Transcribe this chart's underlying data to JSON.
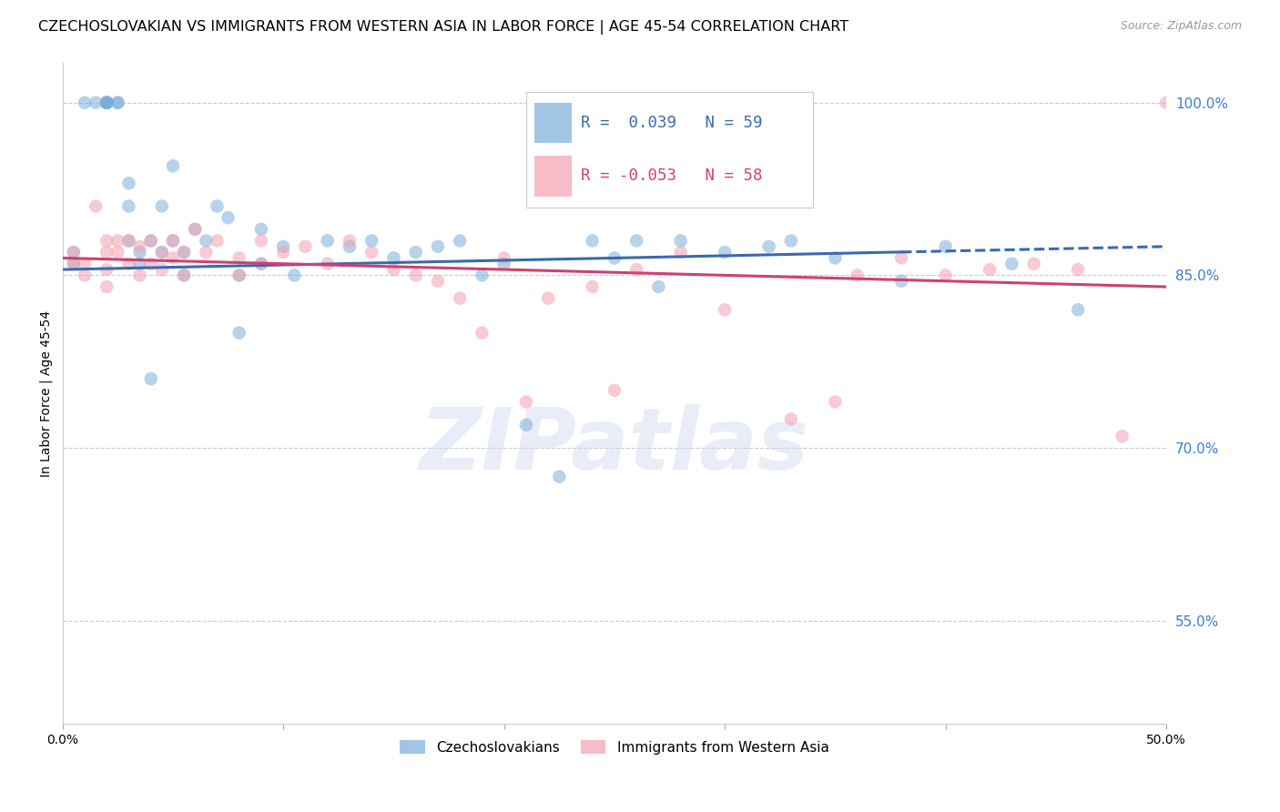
{
  "title": "CZECHOSLOVAKIAN VS IMMIGRANTS FROM WESTERN ASIA IN LABOR FORCE | AGE 45-54 CORRELATION CHART",
  "source": "Source: ZipAtlas.com",
  "ylabel": "In Labor Force | Age 45-54",
  "xlim_pct": [
    0.0,
    50.0
  ],
  "ylim_pct": [
    46.0,
    103.5
  ],
  "ytick_labels_right": [
    "100.0%",
    "85.0%",
    "70.0%",
    "55.0%"
  ],
  "ytick_positions_right": [
    100.0,
    85.0,
    70.0,
    55.0
  ],
  "xtick_positions": [
    0.0,
    10.0,
    20.0,
    30.0,
    40.0,
    50.0
  ],
  "xtick_labels": [
    "0.0%",
    "",
    "",
    "",
    "",
    "50.0%"
  ],
  "blue_R": 0.039,
  "blue_N": 59,
  "pink_R": -0.053,
  "pink_N": 58,
  "blue_color": "#7aafdb",
  "pink_color": "#f4a0b0",
  "blue_line_color": "#3a6ab0",
  "pink_line_color": "#d04070",
  "watermark_text": "ZIPatlas",
  "blue_scatter_x": [
    0.5,
    0.5,
    1.0,
    1.5,
    2.0,
    2.0,
    2.0,
    2.0,
    2.0,
    2.0,
    2.5,
    2.5,
    3.0,
    3.0,
    3.0,
    3.5,
    3.5,
    4.0,
    4.0,
    4.5,
    4.5,
    5.0,
    5.0,
    5.5,
    5.5,
    6.0,
    6.5,
    7.0,
    7.5,
    8.0,
    8.0,
    9.0,
    9.0,
    10.0,
    10.5,
    12.0,
    13.0,
    14.0,
    15.0,
    16.0,
    17.0,
    18.0,
    19.0,
    20.0,
    21.0,
    22.5,
    24.0,
    25.0,
    26.0,
    27.0,
    28.0,
    30.0,
    32.0,
    33.0,
    35.0,
    38.0,
    40.0,
    43.0,
    46.0
  ],
  "blue_scatter_y": [
    87.0,
    86.0,
    100.0,
    100.0,
    100.0,
    100.0,
    100.0,
    100.0,
    100.0,
    100.0,
    100.0,
    100.0,
    91.0,
    93.0,
    88.0,
    87.0,
    86.0,
    88.0,
    76.0,
    91.0,
    87.0,
    94.5,
    88.0,
    87.0,
    85.0,
    89.0,
    88.0,
    91.0,
    90.0,
    85.0,
    80.0,
    89.0,
    86.0,
    87.5,
    85.0,
    88.0,
    87.5,
    88.0,
    86.5,
    87.0,
    87.5,
    88.0,
    85.0,
    86.0,
    72.0,
    67.5,
    88.0,
    86.5,
    88.0,
    84.0,
    88.0,
    87.0,
    87.5,
    88.0,
    86.5,
    84.5,
    87.5,
    86.0,
    82.0
  ],
  "pink_scatter_x": [
    0.5,
    0.5,
    1.0,
    1.0,
    1.5,
    2.0,
    2.0,
    2.0,
    2.0,
    2.5,
    2.5,
    3.0,
    3.0,
    3.5,
    3.5,
    4.0,
    4.0,
    4.5,
    4.5,
    5.0,
    5.0,
    5.5,
    5.5,
    6.0,
    6.5,
    7.0,
    8.0,
    8.0,
    9.0,
    9.0,
    10.0,
    11.0,
    12.0,
    13.0,
    14.0,
    15.0,
    16.0,
    17.0,
    18.0,
    19.0,
    20.0,
    21.0,
    22.0,
    24.0,
    25.0,
    26.0,
    28.0,
    30.0,
    33.0,
    35.0,
    36.0,
    38.0,
    40.0,
    42.0,
    44.0,
    46.0,
    48.0,
    50.0
  ],
  "pink_scatter_y": [
    87.0,
    86.0,
    86.0,
    85.0,
    91.0,
    88.0,
    87.0,
    85.5,
    84.0,
    88.0,
    87.0,
    88.0,
    86.0,
    87.5,
    85.0,
    88.0,
    86.0,
    87.0,
    85.5,
    88.0,
    86.5,
    87.0,
    85.0,
    89.0,
    87.0,
    88.0,
    86.5,
    85.0,
    88.0,
    86.0,
    87.0,
    87.5,
    86.0,
    88.0,
    87.0,
    85.5,
    85.0,
    84.5,
    83.0,
    80.0,
    86.5,
    74.0,
    83.0,
    84.0,
    75.0,
    85.5,
    87.0,
    82.0,
    72.5,
    74.0,
    85.0,
    86.5,
    85.0,
    85.5,
    86.0,
    85.5,
    71.0,
    100.0
  ],
  "blue_line_x0": 0.0,
  "blue_line_x1": 50.0,
  "blue_line_y0": 85.5,
  "blue_line_y1": 87.5,
  "blue_solid_end_x": 38.0,
  "pink_line_x0": 0.0,
  "pink_line_x1": 50.0,
  "pink_line_y0": 86.5,
  "pink_line_y1": 84.0,
  "grid_color": "#cccccc",
  "background_color": "#ffffff",
  "title_fontsize": 11.5,
  "label_fontsize": 10,
  "tick_fontsize": 10
}
